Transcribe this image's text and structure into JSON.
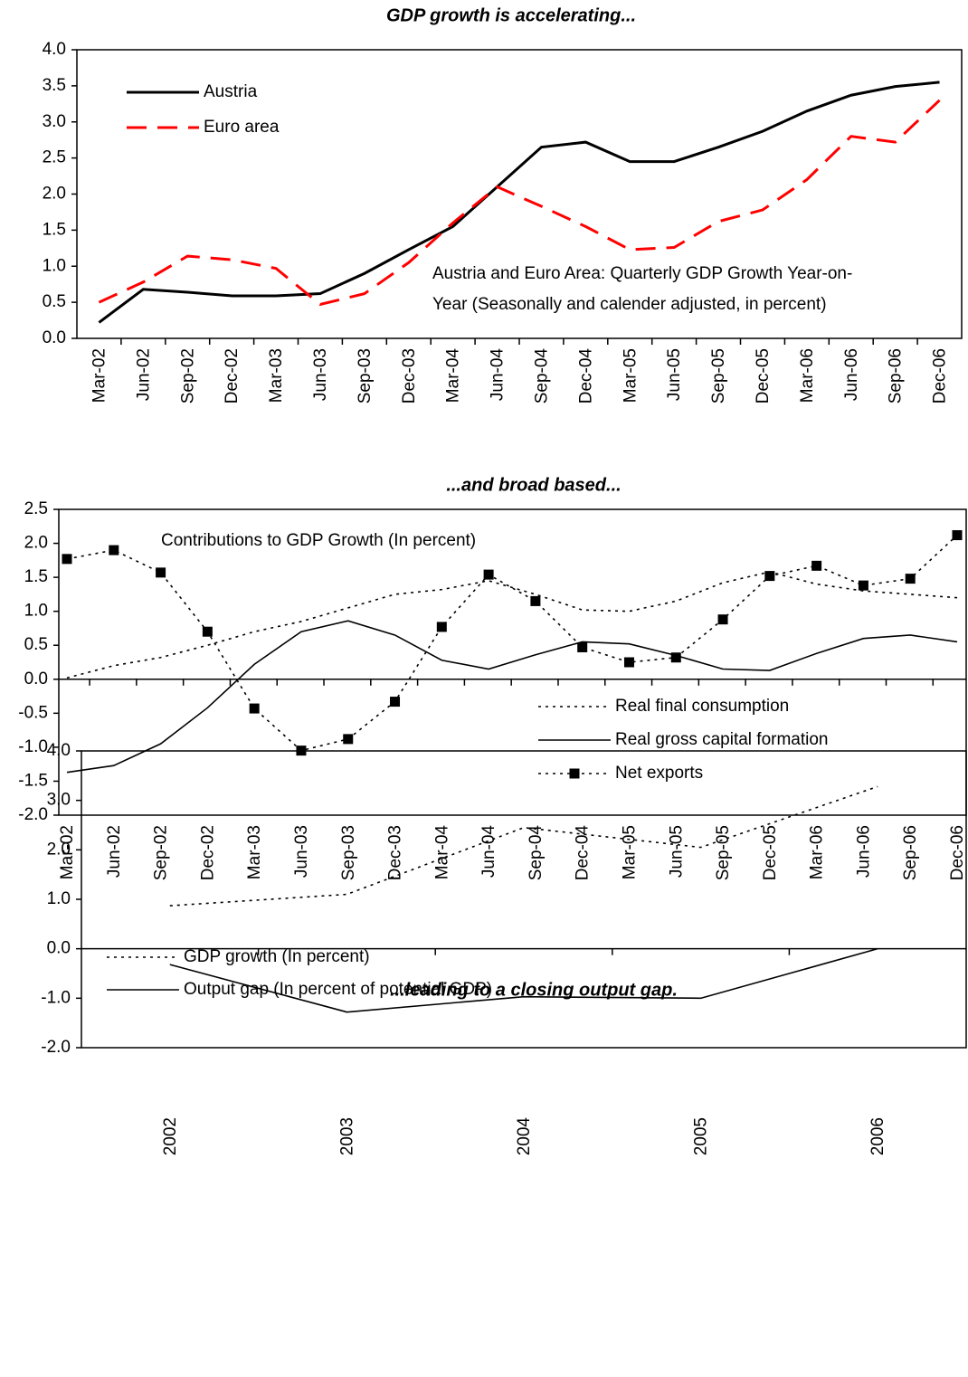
{
  "chart_data": [
    {
      "type": "line",
      "title": "GDP growth is accelerating...",
      "annotation": [
        "Austria and Euro Area: Quarterly GDP Growth Year-on-",
        "Year (Seasonally and calender adjusted, in percent)"
      ],
      "categories": [
        "Mar-02",
        "Jun-02",
        "Sep-02",
        "Dec-02",
        "Mar-03",
        "Jun-03",
        "Sep-03",
        "Dec-03",
        "Mar-04",
        "Jun-04",
        "Sep-04",
        "Dec-04",
        "Mar-05",
        "Jun-05",
        "Sep-05",
        "Dec-05",
        "Mar-06",
        "Jun-06",
        "Sep-06",
        "Dec-06"
      ],
      "series": [
        {
          "name": "Austria",
          "color": "#000000",
          "style": "solid",
          "values": [
            0.22,
            0.68,
            0.64,
            0.59,
            0.59,
            0.62,
            0.9,
            1.23,
            1.55,
            2.1,
            2.65,
            2.72,
            2.45,
            2.45,
            2.65,
            2.87,
            3.15,
            3.37,
            3.49,
            3.55
          ]
        },
        {
          "name": "Euro area",
          "color": "#ff0000",
          "style": "dashed",
          "values": [
            0.5,
            0.78,
            1.14,
            1.09,
            0.97,
            0.47,
            0.62,
            1.05,
            1.6,
            2.1,
            1.83,
            1.55,
            1.23,
            1.26,
            1.62,
            1.78,
            2.2,
            2.8,
            2.72,
            3.3
          ]
        }
      ],
      "ylim": [
        0,
        4
      ],
      "yticks": [
        {
          "value": 0,
          "label": "0.0"
        },
        0.5,
        {
          "value": 1,
          "label": "1.0"
        },
        1.5,
        {
          "value": 2,
          "label": "2.0"
        },
        2.5,
        {
          "value": 3,
          "label": "3.0"
        },
        3.5,
        {
          "value": 4,
          "label": "4.0"
        }
      ],
      "legend": "upper left"
    },
    {
      "type": "line",
      "title": "...and broad based...",
      "annotation": [
        "Contributions to GDP Growth (In percent)"
      ],
      "categories": [
        "Mar-02",
        "Jun-02",
        "Sep-02",
        "Dec-02",
        "Mar-03",
        "Jun-03",
        "Sep-03",
        "Dec-03",
        "Mar-04",
        "Jun-04",
        "Sep-04",
        "Dec-04",
        "Mar-05",
        "Jun-05",
        "Sep-05",
        "Dec-05",
        "Mar-06",
        "Jun-06",
        "Sep-06",
        "Dec-06"
      ],
      "series": [
        {
          "name": "Real final consumption",
          "color": "#000000",
          "style": "dotted",
          "values": [
            0.02,
            0.2,
            0.32,
            0.5,
            0.7,
            0.85,
            1.05,
            1.25,
            1.32,
            1.45,
            1.25,
            1.02,
            1.0,
            1.15,
            1.42,
            1.58,
            1.4,
            1.3,
            1.25,
            1.2
          ]
        },
        {
          "name": "Real gross capital formation",
          "color": "#000000",
          "style": "solid",
          "values": [
            -1.37,
            -1.27,
            -0.95,
            -0.42,
            0.22,
            0.7,
            0.86,
            0.65,
            0.28,
            0.15,
            0.36,
            0.55,
            0.52,
            0.35,
            0.15,
            0.13,
            0.38,
            0.6,
            0.65,
            0.55
          ]
        },
        {
          "name": "Net exports",
          "color": "#000000",
          "style": "dotted",
          "marker": "square",
          "values": [
            1.77,
            1.9,
            1.57,
            0.7,
            -0.43,
            -1.05,
            -0.88,
            -0.33,
            0.77,
            1.54,
            1.15,
            0.47,
            0.25,
            0.32,
            0.88,
            1.52,
            1.67,
            1.38,
            1.48,
            2.12
          ]
        }
      ],
      "ylim": [
        -2,
        2.5
      ],
      "yticks": [
        {
          "value": -2,
          "label": "-2.0"
        },
        -1.5,
        {
          "value": -1,
          "label": "-1.0"
        },
        -0.5,
        {
          "value": 0,
          "label": "0.0"
        },
        0.5,
        {
          "value": 1,
          "label": "1.0"
        },
        1.5,
        {
          "value": 2,
          "label": "2.0"
        },
        2.5
      ],
      "legend": "lower right"
    },
    {
      "type": "line",
      "title": "...leading to a closing output gap.",
      "categories": [
        "2002",
        "2003",
        "2004",
        "2005",
        "2006"
      ],
      "series": [
        {
          "name": "GDP growth (In percent)",
          "color": "#000000",
          "style": "dotted",
          "values": [
            0.87,
            1.1,
            2.45,
            2.05,
            3.28
          ]
        },
        {
          "name": "Output gap (In percent of potential GDP)",
          "color": "#000000",
          "style": "solid",
          "values": [
            -0.32,
            -1.28,
            -0.97,
            -1.0,
            0.0
          ]
        }
      ],
      "ylim": [
        -2,
        4
      ],
      "yticks": [
        {
          "value": -2,
          "label": "-2.0"
        },
        {
          "value": -1,
          "label": "-1.0"
        },
        {
          "value": 0,
          "label": "0.0"
        },
        {
          "value": 1,
          "label": "1.0"
        },
        {
          "value": 2,
          "label": "2.0"
        },
        {
          "value": 3,
          "label": "3.0"
        },
        {
          "value": 4,
          "label": "4.0"
        }
      ],
      "legend": "upper left"
    }
  ]
}
